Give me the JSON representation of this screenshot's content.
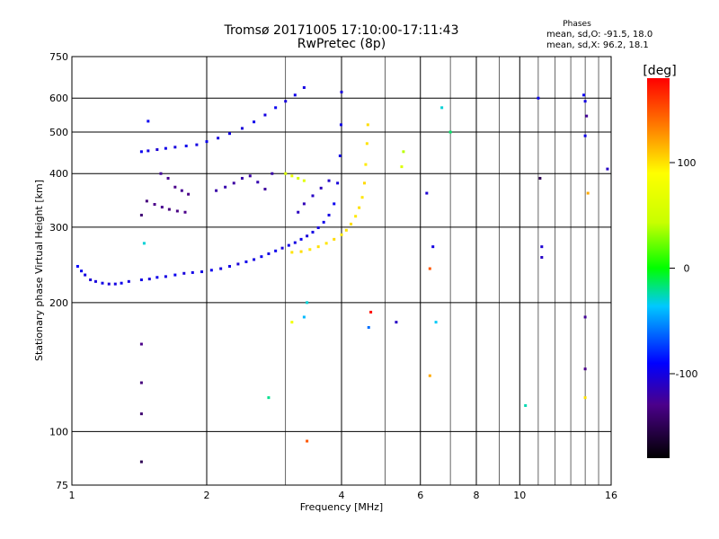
{
  "header": {
    "title_line1": "Tromsø 20171005 17:10:00-17:11:43",
    "title_line2": "RwPretec (8p)"
  },
  "phase_info": {
    "heading": "Phases",
    "line_o": "mean, sd,O:  -91.5, 18.0",
    "line_x": "mean, sd,X:  96.2, 18.1"
  },
  "colorbar": {
    "label": "[deg]",
    "ticks": [
      "100",
      "0",
      "-100"
    ],
    "tick_values": [
      100,
      0,
      -100
    ],
    "range": [
      -180,
      180
    ]
  },
  "chart_data": {
    "type": "scatter",
    "xlabel": "Frequency [MHz]",
    "ylabel": "Stationary phase Virtual Height [km]",
    "x_scale": "log",
    "y_scale": "log",
    "xlim": [
      1,
      16
    ],
    "ylim": [
      75,
      750
    ],
    "grid": true,
    "x_ticks": [
      1,
      2,
      4,
      6,
      8,
      10,
      16
    ],
    "x_tick_labels": [
      "1",
      "2",
      "4",
      "6",
      "8",
      "10",
      "16"
    ],
    "x_minor_ticks": [
      3,
      5,
      7,
      9,
      11,
      12,
      13,
      14,
      15
    ],
    "y_ticks": [
      75,
      100,
      200,
      300,
      400,
      500,
      600,
      750
    ],
    "y_tick_labels": [
      "75",
      "100",
      "200",
      "300",
      "400",
      "500",
      "600",
      "750"
    ],
    "series": [
      {
        "values": [
          [
            1.03,
            243,
            -90
          ],
          [
            1.05,
            237,
            -95
          ],
          [
            1.07,
            232,
            -100
          ],
          [
            1.1,
            226,
            -105
          ],
          [
            1.13,
            224,
            -102
          ],
          [
            1.17,
            222,
            -98
          ],
          [
            1.21,
            221,
            -104
          ],
          [
            1.25,
            221,
            -100
          ],
          [
            1.29,
            222,
            -96
          ],
          [
            1.34,
            224,
            -101
          ],
          [
            1.43,
            226,
            -99
          ],
          [
            1.49,
            227,
            -103
          ],
          [
            1.55,
            229,
            -97
          ],
          [
            1.62,
            230,
            -100
          ],
          [
            1.7,
            232,
            -95
          ],
          [
            1.78,
            234,
            -102
          ],
          [
            1.86,
            235,
            -98
          ],
          [
            1.95,
            236,
            -100
          ],
          [
            2.05,
            238,
            -96
          ],
          [
            2.15,
            240,
            -101
          ],
          [
            2.25,
            243,
            -99
          ],
          [
            2.35,
            246,
            -104
          ],
          [
            2.45,
            249,
            -97
          ],
          [
            2.55,
            252,
            -100
          ],
          [
            2.65,
            256,
            -95
          ],
          [
            2.75,
            260,
            -100
          ],
          [
            2.85,
            264,
            -96
          ],
          [
            2.95,
            268,
            -102
          ],
          [
            3.05,
            272,
            -98
          ],
          [
            3.15,
            276,
            -100
          ],
          [
            3.25,
            281,
            -96
          ],
          [
            3.35,
            286,
            -103
          ],
          [
            3.45,
            292,
            -99
          ],
          [
            3.55,
            299,
            -101
          ],
          [
            3.65,
            308,
            -97
          ],
          [
            3.75,
            320,
            -100
          ],
          [
            3.85,
            340,
            -95
          ],
          [
            3.92,
            380,
            -102
          ],
          [
            3.97,
            440,
            -100
          ],
          [
            3.99,
            520,
            -98
          ],
          [
            4.0,
            620,
            -103
          ],
          [
            3.1,
            262,
            100
          ],
          [
            3.25,
            263,
            102
          ],
          [
            3.4,
            266,
            98
          ],
          [
            3.55,
            270,
            101
          ],
          [
            3.7,
            275,
            99
          ],
          [
            3.85,
            281,
            103
          ],
          [
            4.0,
            288,
            97
          ],
          [
            4.1,
            295,
            100
          ],
          [
            4.2,
            305,
            102
          ],
          [
            4.3,
            318,
            98
          ],
          [
            4.38,
            333,
            101
          ],
          [
            4.45,
            352,
            99
          ],
          [
            4.5,
            380,
            103
          ],
          [
            4.53,
            420,
            97
          ],
          [
            4.56,
            470,
            100
          ],
          [
            4.58,
            520,
            102
          ],
          [
            1.43,
            450,
            -95
          ],
          [
            1.48,
            452,
            -100
          ],
          [
            1.55,
            455,
            -105
          ],
          [
            1.62,
            458,
            -98
          ],
          [
            1.7,
            461,
            -102
          ],
          [
            1.8,
            464,
            -97
          ],
          [
            1.9,
            467,
            -100
          ],
          [
            2.0,
            475,
            -96
          ],
          [
            2.12,
            484,
            -101
          ],
          [
            2.25,
            496,
            -99
          ],
          [
            2.4,
            510,
            -103
          ],
          [
            2.55,
            528,
            -97
          ],
          [
            2.7,
            548,
            -100
          ],
          [
            2.85,
            570,
            -95
          ],
          [
            3.0,
            590,
            -102
          ],
          [
            3.15,
            610,
            -98
          ],
          [
            3.3,
            635,
            -100
          ],
          [
            1.47,
            345,
            -135
          ],
          [
            1.53,
            339,
            -130
          ],
          [
            1.59,
            334,
            -128
          ],
          [
            1.65,
            330,
            -135
          ],
          [
            1.72,
            327,
            -132
          ],
          [
            1.79,
            325,
            -130
          ],
          [
            1.58,
            400,
            -125
          ],
          [
            1.64,
            390,
            -128
          ],
          [
            1.7,
            372,
            -130
          ],
          [
            1.76,
            365,
            -127
          ],
          [
            1.82,
            358,
            -131
          ],
          [
            2.1,
            365,
            -120
          ],
          [
            2.2,
            372,
            -118
          ],
          [
            2.3,
            380,
            -122
          ],
          [
            2.4,
            390,
            -119
          ],
          [
            2.5,
            395,
            -121
          ],
          [
            2.6,
            382,
            -117
          ],
          [
            2.7,
            368,
            -123
          ],
          [
            2.8,
            400,
            -120
          ],
          [
            3.2,
            325,
            -112
          ],
          [
            3.3,
            340,
            -115
          ],
          [
            3.45,
            355,
            -110
          ],
          [
            3.6,
            370,
            -113
          ],
          [
            3.75,
            385,
            -108
          ],
          [
            3.0,
            400,
            60
          ],
          [
            3.1,
            395,
            70
          ],
          [
            3.2,
            390,
            55
          ],
          [
            3.3,
            385,
            65
          ],
          [
            1.43,
            110,
            -140
          ],
          [
            1.43,
            130,
            -135
          ],
          [
            1.43,
            160,
            -130
          ],
          [
            1.43,
            320,
            -138
          ],
          [
            1.43,
            85,
            -150
          ],
          [
            1.45,
            275,
            -30
          ],
          [
            1.48,
            530,
            -95
          ],
          [
            3.3,
            185,
            -40
          ],
          [
            3.35,
            200,
            -30
          ],
          [
            3.35,
            95,
            150
          ],
          [
            2.75,
            120,
            -20
          ],
          [
            3.1,
            180,
            80
          ],
          [
            4.6,
            175,
            -60
          ],
          [
            4.65,
            190,
            175
          ],
          [
            5.3,
            180,
            -110
          ],
          [
            5.5,
            450,
            40
          ],
          [
            5.45,
            415,
            60
          ],
          [
            6.2,
            360,
            -105
          ],
          [
            6.3,
            240,
            150
          ],
          [
            6.4,
            270,
            -100
          ],
          [
            6.3,
            135,
            120
          ],
          [
            6.5,
            180,
            -35
          ],
          [
            7.0,
            500,
            -15
          ],
          [
            6.7,
            570,
            -30
          ],
          [
            10.3,
            115,
            -25
          ],
          [
            11.0,
            600,
            -95
          ],
          [
            11.1,
            390,
            -150
          ],
          [
            11.2,
            270,
            -105
          ],
          [
            11.2,
            255,
            -110
          ],
          [
            13.9,
            610,
            -95
          ],
          [
            14.0,
            590,
            -100
          ],
          [
            14.1,
            545,
            -125
          ],
          [
            14.0,
            490,
            -98
          ],
          [
            14.2,
            360,
            120
          ],
          [
            14.0,
            185,
            -125
          ],
          [
            14.0,
            140,
            -130
          ],
          [
            14.0,
            120,
            100
          ],
          [
            15.7,
            410,
            -110
          ]
        ]
      }
    ]
  }
}
